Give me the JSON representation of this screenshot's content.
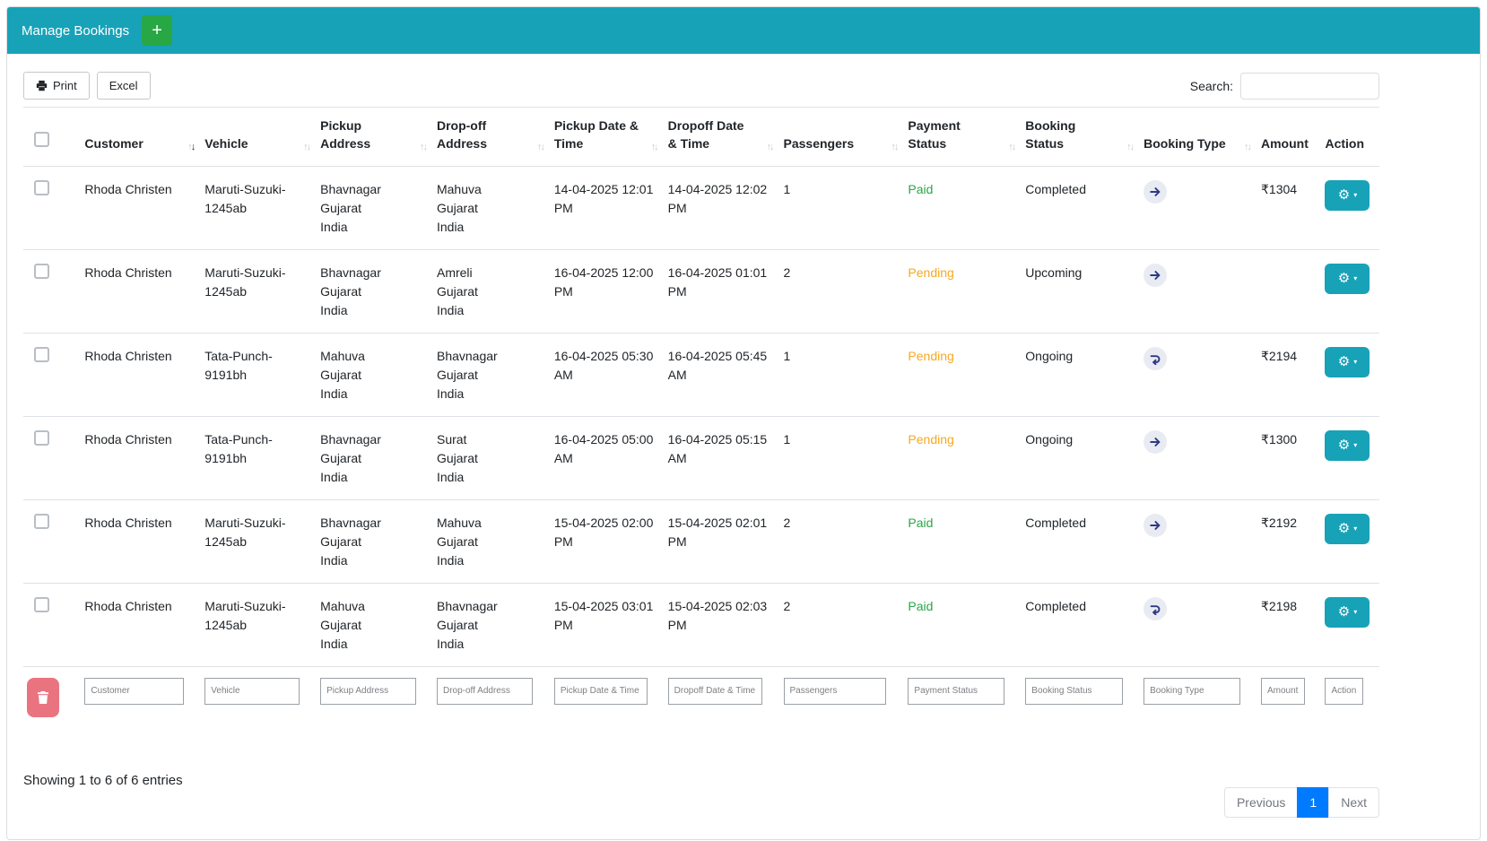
{
  "header": {
    "title": "Manage Bookings",
    "add_button_label": "+"
  },
  "toolbar": {
    "print_label": "Print",
    "excel_label": "Excel",
    "search_label": "Search:",
    "search_value": ""
  },
  "colors": {
    "header_bg": "#17a2b8",
    "add_button_bg": "#28a745",
    "action_button_bg": "#17a2b8",
    "delete_button_bg": "#e97480",
    "active_page_bg": "#007bff",
    "booking_type_icon": "#2d3a86",
    "booking_type_badge_bg": "#e9ebf2",
    "payment_status": {
      "Paid": "#28a745",
      "Pending": "#f6a821"
    }
  },
  "table": {
    "sort_icons": {
      "asc": "↑",
      "desc": "↓"
    },
    "action_button": {
      "gear_icon": "⚙",
      "caret_icon": "▾"
    },
    "columns": [
      {
        "key": "select",
        "label": "",
        "sortable": false
      },
      {
        "key": "customer",
        "label": "Customer",
        "sortable": true,
        "sorted": "desc"
      },
      {
        "key": "vehicle",
        "label": "Vehicle",
        "sortable": true
      },
      {
        "key": "pickup-address",
        "label": "Pickup\nAddress",
        "sortable": true
      },
      {
        "key": "dropoff-address",
        "label": "Drop-off\nAddress",
        "sortable": true
      },
      {
        "key": "pickup-datetime",
        "label": "Pickup Date &\nTime",
        "sortable": true
      },
      {
        "key": "dropoff-datetime",
        "label": "Dropoff Date\n& Time",
        "sortable": true
      },
      {
        "key": "passengers",
        "label": "Passengers",
        "sortable": true
      },
      {
        "key": "payment-status",
        "label": "Payment\nStatus",
        "sortable": true
      },
      {
        "key": "booking-status",
        "label": "Booking\nStatus",
        "sortable": true
      },
      {
        "key": "booking-type",
        "label": "Booking Type",
        "sortable": true
      },
      {
        "key": "amount",
        "label": "Amount",
        "sortable": false
      },
      {
        "key": "action",
        "label": "Action",
        "sortable": false
      }
    ],
    "rows": [
      {
        "customer": "Rhoda Christen",
        "vehicle": "Maruti-Suzuki-\n1245ab",
        "pickup_address": "Bhavnagar\nGujarat\nIndia",
        "dropoff_address": "Mahuva\nGujarat\nIndia",
        "pickup_datetime": "14-04-2025 12:01\nPM",
        "dropoff_datetime": "14-04-2025 12:02\nPM",
        "passengers": "1",
        "payment_status": "Paid",
        "booking_status": "Completed",
        "booking_type": "one-way",
        "amount": "₹1304"
      },
      {
        "customer": "Rhoda Christen",
        "vehicle": "Maruti-Suzuki-\n1245ab",
        "pickup_address": "Bhavnagar\nGujarat\nIndia",
        "dropoff_address": "Amreli\nGujarat\nIndia",
        "pickup_datetime": "16-04-2025 12:00\nPM",
        "dropoff_datetime": "16-04-2025 01:01\nPM",
        "passengers": "2",
        "payment_status": "Pending",
        "booking_status": "Upcoming",
        "booking_type": "one-way",
        "amount": ""
      },
      {
        "customer": "Rhoda Christen",
        "vehicle": "Tata-Punch-\n9191bh",
        "pickup_address": "Mahuva\nGujarat\nIndia",
        "dropoff_address": "Bhavnagar\nGujarat\nIndia",
        "pickup_datetime": "16-04-2025 05:30\nAM",
        "dropoff_datetime": "16-04-2025 05:45\nAM",
        "passengers": "1",
        "payment_status": "Pending",
        "booking_status": "Ongoing",
        "booking_type": "round-trip",
        "amount": "₹2194"
      },
      {
        "customer": "Rhoda Christen",
        "vehicle": "Tata-Punch-\n9191bh",
        "pickup_address": "Bhavnagar\nGujarat\nIndia",
        "dropoff_address": "Surat\nGujarat\nIndia",
        "pickup_datetime": "16-04-2025 05:00\nAM",
        "dropoff_datetime": "16-04-2025 05:15\nAM",
        "passengers": "1",
        "payment_status": "Pending",
        "booking_status": "Ongoing",
        "booking_type": "one-way",
        "amount": "₹1300"
      },
      {
        "customer": "Rhoda Christen",
        "vehicle": "Maruti-Suzuki-\n1245ab",
        "pickup_address": "Bhavnagar\nGujarat\nIndia",
        "dropoff_address": "Mahuva\nGujarat\nIndia",
        "pickup_datetime": "15-04-2025 02:00\nPM",
        "dropoff_datetime": "15-04-2025 02:01\nPM",
        "passengers": "2",
        "payment_status": "Paid",
        "booking_status": "Completed",
        "booking_type": "one-way",
        "amount": "₹2192"
      },
      {
        "customer": "Rhoda Christen",
        "vehicle": "Maruti-Suzuki-\n1245ab",
        "pickup_address": "Mahuva\nGujarat\nIndia",
        "dropoff_address": "Bhavnagar\nGujarat\nIndia",
        "pickup_datetime": "15-04-2025 03:01\nPM",
        "dropoff_datetime": "15-04-2025 02:03\nPM",
        "passengers": "2",
        "payment_status": "Paid",
        "booking_status": "Completed",
        "booking_type": "round-trip",
        "amount": "₹2198"
      }
    ]
  },
  "filters": {
    "placeholders": [
      "Customer",
      "Vehicle",
      "Pickup Address",
      "Drop-off Address",
      "Pickup Date & Time",
      "Dropoff Date & Time",
      "Passengers",
      "Payment Status",
      "Booking Status",
      "Booking Type",
      "Amount",
      "Action"
    ]
  },
  "footer": {
    "showing_text": "Showing 1 to 6 of 6 entries",
    "pagination": {
      "previous": "Previous",
      "page": "1",
      "next": "Next"
    }
  }
}
